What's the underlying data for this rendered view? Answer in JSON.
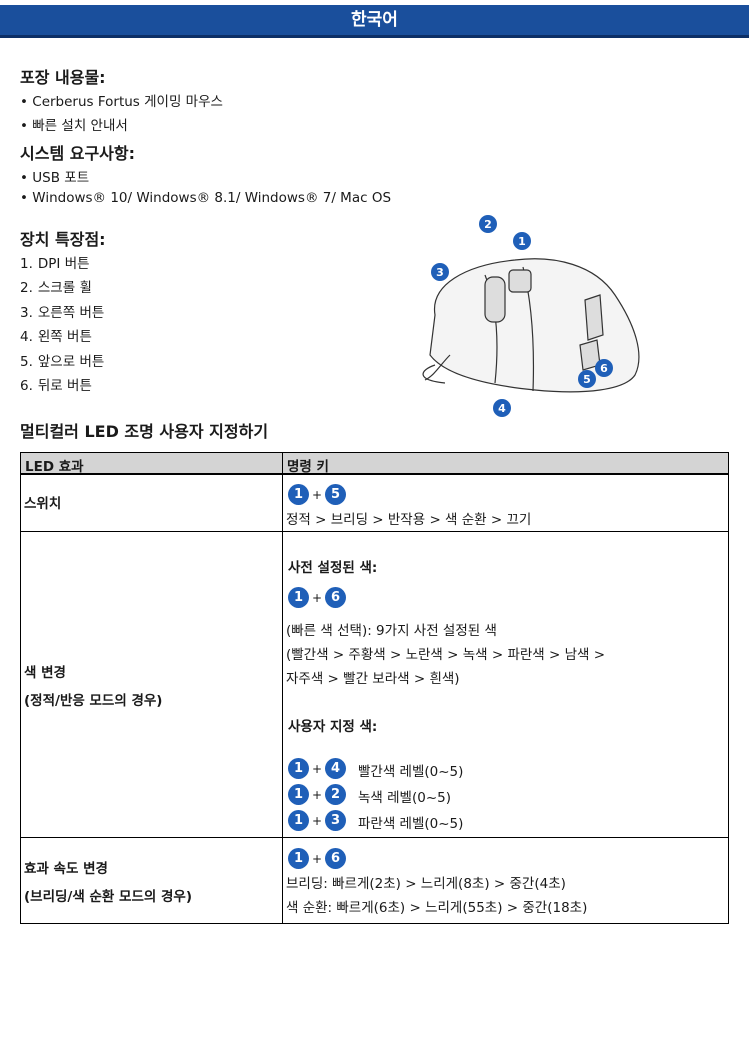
{
  "header": {
    "title": "한국어"
  },
  "package": {
    "title": "포장 내용물:",
    "items": [
      "Cerberus Fortus 게이밍 마우스",
      "빠른 설치 안내서"
    ]
  },
  "requirements": {
    "title": "시스템 요구사항:",
    "items": [
      "USB 포트",
      "Windows® 10/ Windows® 8.1/ Windows® 7/ Mac OS"
    ]
  },
  "features": {
    "title": "장치 특장점:",
    "items": [
      {
        "number": "1.",
        "label": "DPI 버튼"
      },
      {
        "number": "2.",
        "label": "스크롤 휠"
      },
      {
        "number": "3.",
        "label": "오른쪽 버튼"
      },
      {
        "number": "4.",
        "label": "왼쪽 버튼"
      },
      {
        "number": "5.",
        "label": "앞으로 버튼"
      },
      {
        "number": "6.",
        "label": "뒤로 버튼"
      }
    ]
  },
  "diagram": {
    "callouts": [
      "1",
      "2",
      "3",
      "4",
      "5",
      "6"
    ]
  },
  "led": {
    "title": "멀티컬러 LED 조명 사용자 지정하기",
    "table": {
      "columns": [
        "LED 효과",
        "명령 키"
      ],
      "rows": [
        {
          "effect": [
            "스위치"
          ],
          "combo": [
            "1",
            "+",
            "5"
          ],
          "lines": [
            "정적 > 브리딩 > 반작용 > 색 순환 > 끄기"
          ]
        },
        {
          "effect": [
            "색 변경",
            "(정적/반응 모드의 경우)"
          ],
          "preset_title": "사전 설정된 색:",
          "combo": [
            "1",
            "+",
            "6"
          ],
          "lines": [
            "(빠른 색 선택): 9가지 사전 설정된 색",
            "(빨간색 > 주황색 > 노란색 > 녹색 > 파란색 > 남색 >",
            "자주색 > 빨간 보라색 > 흰색)"
          ],
          "custom_title": "사용자 지정 색:",
          "custom": [
            {
              "combo": [
                "1",
                "+",
                "4"
              ],
              "text": "빨간색 레벨(0~5)"
            },
            {
              "combo": [
                "1",
                "+",
                "2"
              ],
              "text": "녹색 레벨(0~5)"
            },
            {
              "combo": [
                "1",
                "+",
                "3"
              ],
              "text": "파란색 레벨(0~5)"
            }
          ]
        },
        {
          "effect": [
            "효과 속도 변경",
            "(브리딩/색 순환 모드의 경우)"
          ],
          "combo": [
            "1",
            "+",
            "6"
          ],
          "lines": [
            "브리딩: 빠르게(2초) > 느리게(8초) > 중간(4초)",
            "색 순환: 빠르게(6초) > 느리게(55초) > 중간(18초)"
          ]
        }
      ]
    }
  }
}
